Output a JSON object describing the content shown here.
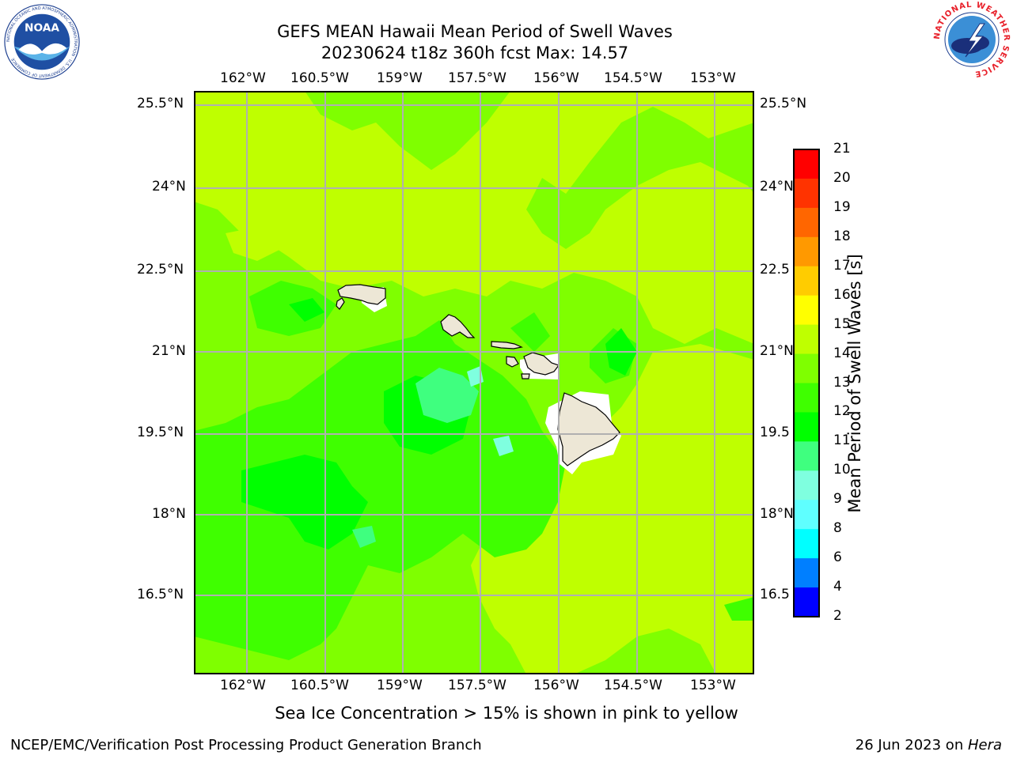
{
  "title": {
    "line1": "GEFS MEAN Hawaii Mean Period of Swell Waves",
    "line2": "20230624 t18z 360h fcst   Max: 14.57"
  },
  "map": {
    "lon_labels": [
      "162°W",
      "160.5°W",
      "159°W",
      "157.5°W",
      "156°W",
      "154.5°W",
      "153°W"
    ],
    "lat_labels_left": [
      "25.5°N",
      "24°N",
      "22.5°N",
      "21°N",
      "19.5°N",
      "18°N",
      "16.5°N"
    ],
    "lat_labels_right": [
      "25.5°N",
      "24°N",
      "22.5",
      "21°N",
      "19.5",
      "18°N",
      "16.5"
    ],
    "fill_colors": {
      "light_green": "#7fff00",
      "yellow_green": "#bfff00",
      "mid_green": "#3fff00",
      "green": "#00ff00",
      "aqua_green": "#3fff7f",
      "pale_cyan": "#7fffdf",
      "land": "#ede7d6"
    },
    "islands": [
      "Niihau",
      "Kauai",
      "Oahu",
      "Molokai",
      "Lanai",
      "Maui",
      "Kahoolawe",
      "Hawaii"
    ]
  },
  "colorbar": {
    "label": "Mean Period of Swell Waves [s]",
    "ticks": [
      "21",
      "20",
      "19",
      "18",
      "17",
      "16",
      "15",
      "14",
      "13",
      "12",
      "11",
      "10",
      "9",
      "8",
      "6",
      "4",
      "2"
    ],
    "colors": [
      "#ff0000",
      "#ff3300",
      "#ff6600",
      "#ff9900",
      "#ffcc00",
      "#ffff00",
      "#bfff00",
      "#7fff00",
      "#3fff00",
      "#00ff00",
      "#3fff7f",
      "#7fffdf",
      "#5fffff",
      "#00ffff",
      "#007fff",
      "#0000ff"
    ]
  },
  "caption": "Sea Ice Concentration > 15% is shown in pink to yellow",
  "footer": {
    "left": "NCEP/EMC/Verification Post Processing Product Generation Branch",
    "date": "26 Jun 2023 on ",
    "host": "Hera"
  },
  "logos": {
    "noaa_text": "NOAA",
    "noaa_ring": "NATIONAL OCEANIC AND ATMOSPHERIC ADMINISTRATION · U.S. DEPARTMENT OF COMMERCE",
    "nws_ring": "NATIONAL WEATHER SERVICE"
  }
}
